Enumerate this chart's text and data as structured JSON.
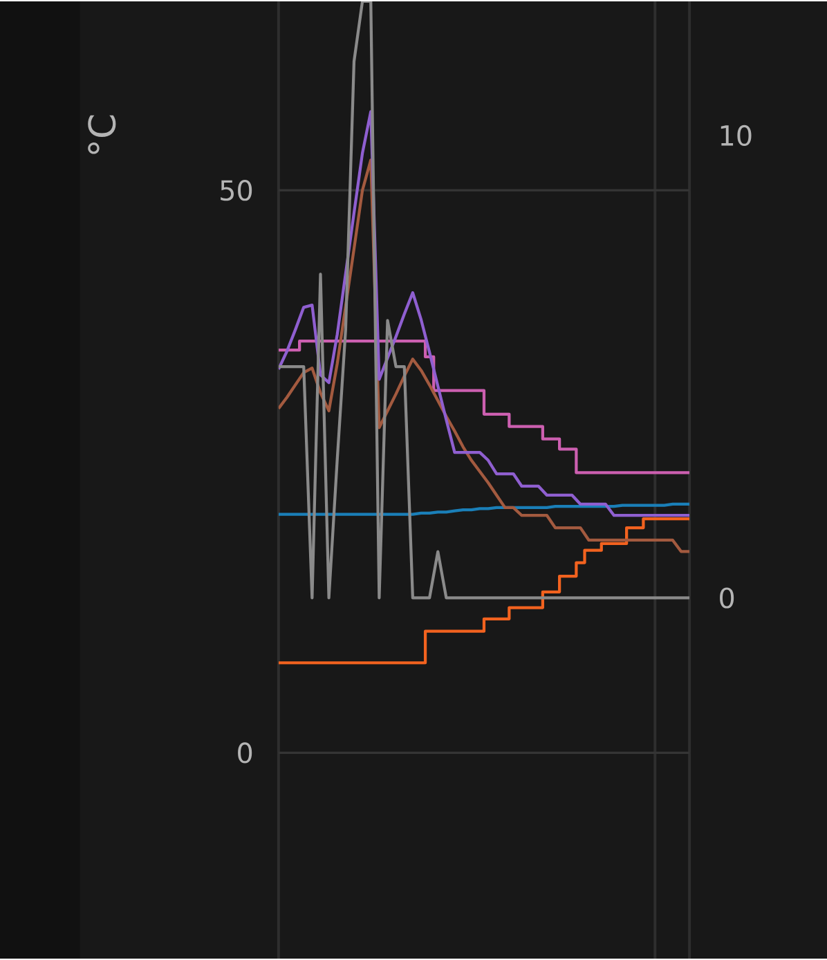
{
  "chart_data": {
    "type": "line",
    "ylabel": "°C",
    "ylim": [
      -18.3,
      66.8
    ],
    "yticks": [
      0,
      50
    ],
    "y2lim": [
      -7.8,
      12.9
    ],
    "y2ticks": [
      0,
      10
    ],
    "grid": "y",
    "tick_labels": "y",
    "categories": [
      null,
      null,
      null,
      null,
      null,
      null,
      null,
      null,
      null,
      null,
      null,
      null,
      null,
      null,
      null,
      null,
      null,
      null,
      null,
      null,
      null,
      null,
      null,
      null,
      null,
      null,
      null,
      null,
      null,
      null,
      null,
      null,
      null,
      null,
      null,
      null,
      null,
      null,
      null,
      null,
      null,
      null,
      null,
      null,
      null,
      null,
      null,
      null,
      null,
      null
    ],
    "series": [
      {
        "color": "#1a7fb8",
        "values": [
          21.2,
          21.2,
          21.2,
          21.2,
          21.2,
          21.2,
          21.2,
          21.2,
          21.2,
          21.2,
          21.2,
          21.2,
          21.2,
          21.2,
          21.2,
          21.2,
          21.2,
          21.3,
          21.3,
          21.4,
          21.4,
          21.5,
          21.6,
          21.6,
          21.7,
          21.7,
          21.8,
          21.8,
          21.8,
          21.8,
          21.8,
          21.8,
          21.8,
          21.9,
          21.9,
          21.9,
          21.9,
          21.9,
          21.9,
          21.9,
          21.9,
          22.0,
          22.0,
          22.0,
          22.0,
          22.0,
          22.0,
          22.1,
          22.1,
          22.1
        ]
      },
      {
        "type": "step",
        "color": "#cc5fb0",
        "values": [
          35.8,
          35.8,
          35.8,
          36.6,
          36.6,
          36.6,
          36.6,
          36.6,
          36.6,
          36.6,
          36.6,
          36.6,
          36.6,
          36.6,
          36.6,
          36.6,
          36.6,
          36.6,
          35.2,
          32.2,
          32.2,
          32.2,
          32.2,
          32.2,
          32.2,
          30.1,
          30.1,
          30.1,
          29.0,
          29.0,
          29.0,
          29.0,
          27.9,
          27.9,
          27.0,
          27.0,
          24.9,
          24.9,
          24.9,
          24.9,
          24.9,
          24.9,
          24.9,
          24.9,
          24.9,
          24.9,
          24.9,
          24.9,
          24.9,
          24.9
        ]
      },
      {
        "type": "step",
        "color": "#f2621f",
        "values": [
          8.0,
          8.0,
          8.0,
          8.0,
          8.0,
          8.0,
          8.0,
          8.0,
          8.0,
          8.0,
          8.0,
          8.0,
          8.0,
          8.0,
          8.0,
          8.0,
          8.0,
          8.0,
          10.8,
          10.8,
          10.8,
          10.8,
          10.8,
          10.8,
          10.8,
          11.9,
          11.9,
          11.9,
          12.9,
          12.9,
          12.9,
          12.9,
          14.3,
          14.3,
          15.7,
          15.7,
          16.9,
          18.0,
          18.0,
          18.6,
          18.6,
          18.6,
          20.0,
          20.0,
          20.8,
          20.8,
          20.8,
          20.8,
          20.8,
          20.8
        ]
      },
      {
        "color": "#a35a3f",
        "values": [
          30.6,
          31.6,
          32.7,
          33.8,
          34.2,
          32.0,
          30.4,
          34.6,
          39.7,
          44.8,
          50.0,
          52.7,
          28.9,
          30.4,
          31.9,
          33.5,
          35.0,
          34.0,
          32.7,
          31.3,
          29.9,
          28.6,
          27.2,
          26.0,
          25.0,
          24.0,
          22.9,
          21.8,
          21.8,
          21.1,
          21.1,
          21.1,
          21.1,
          20.0,
          20.0,
          20.0,
          20.0,
          18.9,
          18.9,
          18.9,
          18.9,
          18.9,
          18.9,
          18.9,
          18.9,
          18.9,
          18.9,
          18.9,
          17.9,
          17.9
        ]
      },
      {
        "color": "#8f5fd0",
        "values": [
          34.1,
          35.7,
          37.6,
          39.6,
          39.8,
          33.6,
          32.9,
          37.2,
          42.6,
          48.0,
          53.3,
          57.0,
          33.2,
          35.1,
          37.0,
          39.0,
          40.9,
          38.5,
          35.6,
          32.6,
          29.6,
          26.7,
          26.7,
          26.7,
          26.7,
          26.0,
          24.8,
          24.8,
          24.8,
          23.7,
          23.7,
          23.7,
          22.9,
          22.9,
          22.9,
          22.9,
          22.1,
          22.1,
          22.1,
          22.1,
          21.1,
          21.1,
          21.1,
          21.1,
          21.1,
          21.1,
          21.1,
          21.1,
          21.1,
          21.1
        ]
      },
      {
        "color": "#8a8a8a",
        "axis": "y2",
        "values": [
          5.0,
          5.0,
          5.0,
          5.0,
          0,
          7.0,
          0,
          3.0,
          5.8,
          11.6,
          12.9,
          12.9,
          0,
          6.0,
          5.0,
          5.0,
          0,
          0,
          0,
          1.0,
          0,
          0,
          0,
          0,
          0,
          0,
          0,
          0,
          0,
          0,
          0,
          0,
          0,
          0,
          0,
          0,
          0,
          0,
          0,
          0,
          0,
          0,
          0,
          0,
          0,
          0,
          0,
          0,
          0,
          0
        ]
      }
    ]
  }
}
